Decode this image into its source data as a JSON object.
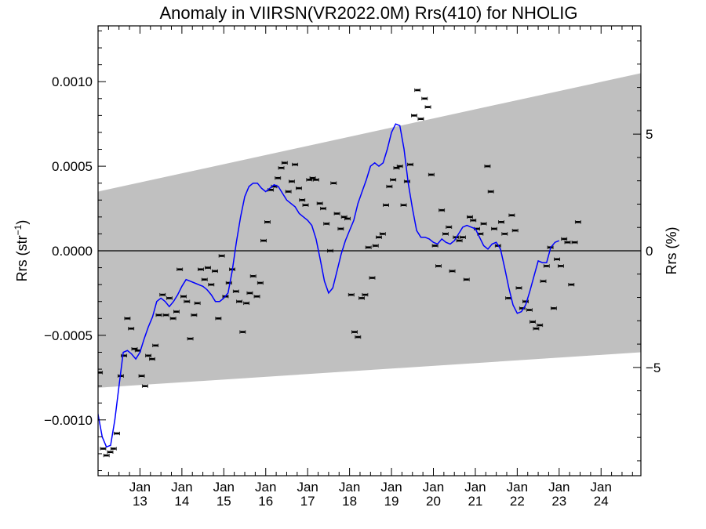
{
  "chart_data": {
    "type": "scatter",
    "title": "Anomaly in VIIRSN(VR2022.0M) Rrs(410) for NHOLIG",
    "ylabel_left": "Rrs (str",
    "ylabel_left_sup": "−1",
    "ylabel_left_close": ")",
    "ylabel_right": "Rrs (%)",
    "ylim": [
      -0.00133,
      0.00133
    ],
    "xlim": [
      2012.0,
      2024.95
    ],
    "right_ylim": [
      -9.64,
      9.64
    ],
    "y_ticks": [
      {
        "value": 0.001,
        "label": "0.0010"
      },
      {
        "value": 0.0005,
        "label": "0.0005"
      },
      {
        "value": 0.0,
        "label": "0.0000"
      },
      {
        "value": -0.0005,
        "label": "−0.0005"
      },
      {
        "value": -0.001,
        "label": "−0.0010"
      }
    ],
    "right_ticks": [
      {
        "value": 5,
        "label": "5"
      },
      {
        "value": 0,
        "label": "0"
      },
      {
        "value": -5,
        "label": "−5"
      }
    ],
    "x_ticks": [
      {
        "value": 2013,
        "month": "Jan",
        "year": "13"
      },
      {
        "value": 2014,
        "month": "Jan",
        "year": "14"
      },
      {
        "value": 2015,
        "month": "Jan",
        "year": "15"
      },
      {
        "value": 2016,
        "month": "Jan",
        "year": "16"
      },
      {
        "value": 2017,
        "month": "Jan",
        "year": "17"
      },
      {
        "value": 2018,
        "month": "Jan",
        "year": "18"
      },
      {
        "value": 2019,
        "month": "Jan",
        "year": "19"
      },
      {
        "value": 2020,
        "month": "Jan",
        "year": "20"
      },
      {
        "value": 2021,
        "month": "Jan",
        "year": "21"
      },
      {
        "value": 2022,
        "month": "Jan",
        "year": "22"
      },
      {
        "value": 2023,
        "month": "Jan",
        "year": "23"
      },
      {
        "value": 2024,
        "month": "Jan",
        "year": "24"
      }
    ],
    "band": {
      "x": [
        2012.0,
        2024.95
      ],
      "upper": [
        0.00035,
        0.00105
      ],
      "lower": [
        -0.00081,
        -0.0006
      ]
    },
    "zero_line": 0.0,
    "grid": false,
    "legend": "none",
    "colors": {
      "band": "#c0c0c0",
      "points": "#000000",
      "smooth_line": "#0000ff",
      "zero_line": "#000000"
    },
    "series": [
      {
        "kind": "monthly_anomaly_points",
        "points": [
          [
            2012.04,
            -0.00072
          ],
          [
            2012.12,
            -0.00117
          ],
          [
            2012.2,
            -0.00121
          ],
          [
            2012.29,
            -0.00119
          ],
          [
            2012.37,
            -0.00117
          ],
          [
            2012.45,
            -0.00108
          ],
          [
            2012.54,
            -0.00074
          ],
          [
            2012.62,
            -0.00062
          ],
          [
            2012.7,
            -0.0004
          ],
          [
            2012.79,
            -0.00046
          ],
          [
            2012.87,
            -0.00058
          ],
          [
            2012.95,
            -0.00059
          ],
          [
            2013.04,
            -0.00074
          ],
          [
            2013.12,
            -0.0008
          ],
          [
            2013.2,
            -0.00062
          ],
          [
            2013.29,
            -0.00064
          ],
          [
            2013.37,
            -0.00056
          ],
          [
            2013.45,
            -0.00038
          ],
          [
            2013.54,
            -0.00026
          ],
          [
            2013.62,
            -0.00038
          ],
          [
            2013.7,
            -0.00028
          ],
          [
            2013.79,
            -0.0004
          ],
          [
            2013.87,
            -0.00036
          ],
          [
            2013.95,
            -0.00011
          ],
          [
            2014.04,
            -0.00027
          ],
          [
            2014.12,
            -0.0003
          ],
          [
            2014.2,
            -0.00052
          ],
          [
            2014.29,
            -0.00038
          ],
          [
            2014.37,
            -0.00031
          ],
          [
            2014.45,
            -0.00011
          ],
          [
            2014.54,
            -0.00017
          ],
          [
            2014.62,
            -0.0001
          ],
          [
            2014.7,
            -0.0002
          ],
          [
            2014.79,
            -0.00012
          ],
          [
            2014.87,
            -0.0004
          ],
          [
            2014.95,
            -3e-05
          ],
          [
            2015.04,
            -0.00027
          ],
          [
            2015.12,
            -0.00019
          ],
          [
            2015.2,
            -0.00011
          ],
          [
            2015.29,
            -0.00024
          ],
          [
            2015.37,
            -0.0003
          ],
          [
            2015.45,
            -0.00048
          ],
          [
            2015.54,
            -0.00031
          ],
          [
            2015.62,
            -0.00025
          ],
          [
            2015.7,
            -0.00015
          ],
          [
            2015.79,
            -0.00027
          ],
          [
            2015.87,
            -0.00019
          ],
          [
            2015.95,
            6e-05
          ],
          [
            2016.04,
            0.00017
          ],
          [
            2016.12,
            0.00036
          ],
          [
            2016.2,
            0.00038
          ],
          [
            2016.29,
            0.00043
          ],
          [
            2016.37,
            0.00049
          ],
          [
            2016.45,
            0.00052
          ],
          [
            2016.54,
            0.00035
          ],
          [
            2016.62,
            0.00041
          ],
          [
            2016.7,
            0.00051
          ],
          [
            2016.79,
            0.00037
          ],
          [
            2016.87,
            0.0003
          ],
          [
            2016.95,
            0.00027
          ],
          [
            2017.04,
            0.00042
          ],
          [
            2017.12,
            0.00043
          ],
          [
            2017.2,
            0.00042
          ],
          [
            2017.29,
            0.00028
          ],
          [
            2017.37,
            0.00025
          ],
          [
            2017.45,
            0.00016
          ],
          [
            2017.54,
            0.0
          ],
          [
            2017.62,
            0.0004
          ],
          [
            2017.7,
            0.00022
          ],
          [
            2017.79,
            0.00013
          ],
          [
            2017.87,
            0.0002
          ],
          [
            2017.95,
            0.00019
          ],
          [
            2018.04,
            -0.00026
          ],
          [
            2018.12,
            -0.00048
          ],
          [
            2018.2,
            -0.00051
          ],
          [
            2018.29,
            -0.00028
          ],
          [
            2018.37,
            -0.00026
          ],
          [
            2018.45,
            2e-05
          ],
          [
            2018.54,
            -0.00016
          ],
          [
            2018.62,
            3e-05
          ],
          [
            2018.7,
            8e-05
          ],
          [
            2018.79,
            0.0001
          ],
          [
            2018.87,
            0.00027
          ],
          [
            2018.95,
            0.00038
          ],
          [
            2019.04,
            0.00042
          ],
          [
            2019.12,
            0.00049
          ],
          [
            2019.2,
            0.0005
          ],
          [
            2019.29,
            0.00027
          ],
          [
            2019.37,
            0.00041
          ],
          [
            2019.45,
            0.00051
          ],
          [
            2019.54,
            0.0008
          ],
          [
            2019.62,
            0.00095
          ],
          [
            2019.7,
            0.00078
          ],
          [
            2019.79,
            0.0009
          ],
          [
            2019.87,
            0.00085
          ],
          [
            2019.95,
            0.00045
          ],
          [
            2020.04,
            3e-05
          ],
          [
            2020.12,
            -9e-05
          ],
          [
            2020.2,
            0.00024
          ],
          [
            2020.29,
            0.0001
          ],
          [
            2020.37,
            0.00014
          ],
          [
            2020.45,
            -0.00012
          ],
          [
            2020.54,
            8e-05
          ],
          [
            2020.62,
            6e-05
          ],
          [
            2020.7,
            8e-05
          ],
          [
            2020.79,
            -0.00017
          ],
          [
            2020.87,
            0.0002
          ],
          [
            2020.95,
            0.00018
          ],
          [
            2021.04,
            0.00013
          ],
          [
            2021.12,
            0.0001
          ],
          [
            2021.2,
            0.00016
          ],
          [
            2021.29,
            0.0005
          ],
          [
            2021.37,
            0.00035
          ],
          [
            2021.45,
            0.00013
          ],
          [
            2021.54,
            3e-05
          ],
          [
            2021.62,
            0.00017
          ],
          [
            2021.7,
            0.0001
          ],
          [
            2021.79,
            -0.00028
          ],
          [
            2021.87,
            0.00021
          ],
          [
            2021.95,
            0.00012
          ],
          [
            2022.04,
            -0.00022
          ],
          [
            2022.12,
            -0.00034
          ],
          [
            2022.2,
            -0.0003
          ],
          [
            2022.29,
            -0.00035
          ],
          [
            2022.37,
            -0.00042
          ],
          [
            2022.45,
            -0.00046
          ],
          [
            2022.54,
            -0.00044
          ],
          [
            2022.62,
            -0.00018
          ],
          [
            2022.7,
            -9e-05
          ],
          [
            2022.79,
            2e-05
          ],
          [
            2022.87,
            -0.00034
          ],
          [
            2022.95,
            -5e-05
          ],
          [
            2023.04,
            -9e-05
          ],
          [
            2023.12,
            7e-05
          ],
          [
            2023.2,
            5e-05
          ],
          [
            2023.29,
            -0.0002
          ],
          [
            2023.37,
            5e-05
          ],
          [
            2023.45,
            0.00017
          ]
        ]
      },
      {
        "kind": "smoothed_anomaly_line",
        "points": [
          [
            2011.95,
            -0.0009
          ],
          [
            2012.1,
            -0.0011
          ],
          [
            2012.2,
            -0.00116
          ],
          [
            2012.3,
            -0.00115
          ],
          [
            2012.4,
            -0.001
          ],
          [
            2012.5,
            -0.0008
          ],
          [
            2012.6,
            -0.0006
          ],
          [
            2012.7,
            -0.00059
          ],
          [
            2012.8,
            -0.00061
          ],
          [
            2012.9,
            -0.00064
          ],
          [
            2013.0,
            -0.0006
          ],
          [
            2013.1,
            -0.00052
          ],
          [
            2013.2,
            -0.00045
          ],
          [
            2013.3,
            -0.00039
          ],
          [
            2013.4,
            -0.0003
          ],
          [
            2013.5,
            -0.00028
          ],
          [
            2013.6,
            -0.0003
          ],
          [
            2013.7,
            -0.00033
          ],
          [
            2013.8,
            -0.0003
          ],
          [
            2013.9,
            -0.00026
          ],
          [
            2014.0,
            -0.00021
          ],
          [
            2014.1,
            -0.00017
          ],
          [
            2014.2,
            -0.00018
          ],
          [
            2014.3,
            -0.00019
          ],
          [
            2014.4,
            -0.0002
          ],
          [
            2014.5,
            -0.00021
          ],
          [
            2014.6,
            -0.00023
          ],
          [
            2014.7,
            -0.00026
          ],
          [
            2014.8,
            -0.0003
          ],
          [
            2014.9,
            -0.0003
          ],
          [
            2015.0,
            -0.00028
          ],
          [
            2015.1,
            -0.00025
          ],
          [
            2015.2,
            -0.00012
          ],
          [
            2015.3,
            5e-05
          ],
          [
            2015.4,
            0.0002
          ],
          [
            2015.5,
            0.00032
          ],
          [
            2015.6,
            0.00038
          ],
          [
            2015.7,
            0.0004
          ],
          [
            2015.8,
            0.0004
          ],
          [
            2015.9,
            0.00037
          ],
          [
            2016.0,
            0.00035
          ],
          [
            2016.1,
            0.00037
          ],
          [
            2016.2,
            0.00039
          ],
          [
            2016.3,
            0.00038
          ],
          [
            2016.4,
            0.00034
          ],
          [
            2016.5,
            0.0003
          ],
          [
            2016.6,
            0.00028
          ],
          [
            2016.7,
            0.00026
          ],
          [
            2016.8,
            0.00022
          ],
          [
            2016.9,
            0.0002
          ],
          [
            2017.0,
            0.00018
          ],
          [
            2017.1,
            0.00015
          ],
          [
            2017.2,
            7e-05
          ],
          [
            2017.3,
            -5e-05
          ],
          [
            2017.4,
            -0.00018
          ],
          [
            2017.5,
            -0.00025
          ],
          [
            2017.6,
            -0.00022
          ],
          [
            2017.7,
            -0.00012
          ],
          [
            2017.8,
            -2e-05
          ],
          [
            2017.9,
            6e-05
          ],
          [
            2018.0,
            0.00012
          ],
          [
            2018.1,
            0.00018
          ],
          [
            2018.2,
            0.00028
          ],
          [
            2018.3,
            0.00035
          ],
          [
            2018.4,
            0.00042
          ],
          [
            2018.5,
            0.0005
          ],
          [
            2018.6,
            0.00052
          ],
          [
            2018.7,
            0.0005
          ],
          [
            2018.8,
            0.00052
          ],
          [
            2018.9,
            0.0006
          ],
          [
            2019.0,
            0.0007
          ],
          [
            2019.1,
            0.00075
          ],
          [
            2019.2,
            0.00074
          ],
          [
            2019.3,
            0.0006
          ],
          [
            2019.4,
            0.0004
          ],
          [
            2019.5,
            0.00025
          ],
          [
            2019.6,
            0.00012
          ],
          [
            2019.7,
            8e-05
          ],
          [
            2019.8,
            8e-05
          ],
          [
            2019.9,
            7e-05
          ],
          [
            2020.0,
            5e-05
          ],
          [
            2020.1,
            4e-05
          ],
          [
            2020.2,
            7e-05
          ],
          [
            2020.3,
            5e-05
          ],
          [
            2020.4,
            4e-05
          ],
          [
            2020.5,
            6e-05
          ],
          [
            2020.6,
            0.0001
          ],
          [
            2020.7,
            0.00014
          ],
          [
            2020.8,
            0.00015
          ],
          [
            2020.9,
            0.00014
          ],
          [
            2021.0,
            0.00013
          ],
          [
            2021.1,
            8e-05
          ],
          [
            2021.2,
            3e-05
          ],
          [
            2021.3,
            1e-05
          ],
          [
            2021.4,
            4e-05
          ],
          [
            2021.5,
            5e-05
          ],
          [
            2021.6,
            1e-05
          ],
          [
            2021.7,
            -0.0001
          ],
          [
            2021.8,
            -0.00022
          ],
          [
            2021.9,
            -0.00032
          ],
          [
            2022.0,
            -0.00037
          ],
          [
            2022.1,
            -0.00036
          ],
          [
            2022.2,
            -0.00032
          ],
          [
            2022.3,
            -0.00024
          ],
          [
            2022.4,
            -0.00015
          ],
          [
            2022.5,
            -6e-05
          ],
          [
            2022.6,
            -7e-05
          ],
          [
            2022.7,
            -7e-05
          ],
          [
            2022.8,
            2e-05
          ],
          [
            2022.9,
            5e-05
          ],
          [
            2023.0,
            6e-05
          ]
        ]
      }
    ]
  }
}
